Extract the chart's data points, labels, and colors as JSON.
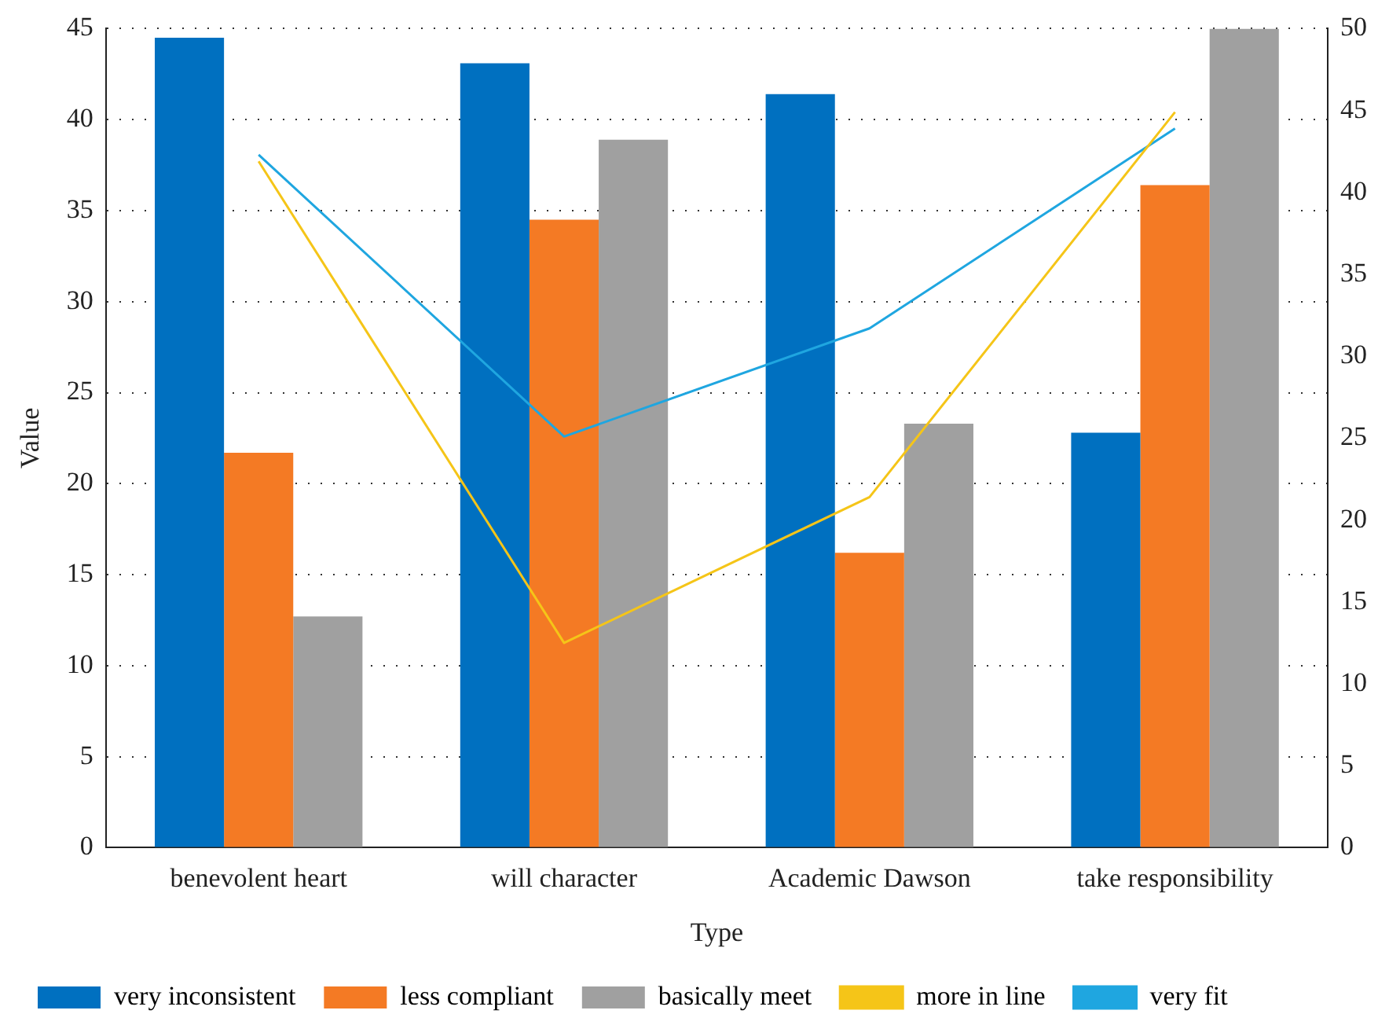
{
  "chart_data": {
    "type": "bar",
    "xlabel": "Type",
    "ylabel": "Value",
    "categories": [
      "benevolent heart",
      "will character",
      "Academic Dawson",
      "take responsibility"
    ],
    "series": [
      {
        "name": "very inconsistent",
        "color": "#0070c0",
        "values": [
          44.5,
          43.1,
          41.4,
          22.8
        ]
      },
      {
        "name": "less compliant",
        "color": "#f47a24",
        "values": [
          21.7,
          34.5,
          16.2,
          36.4
        ]
      },
      {
        "name": "basically meet",
        "color": "#a0a0a0",
        "values": [
          12.7,
          38.9,
          23.3,
          45.0
        ]
      },
      {
        "name": "more in line",
        "color": "#f5c518",
        "type": "line",
        "axis": "y2",
        "values": [
          41.9,
          12.5,
          21.4,
          44.9
        ]
      },
      {
        "name": "very fit",
        "color": "#1fa6e0",
        "type": "line",
        "axis": "y2",
        "values": [
          42.3,
          25.1,
          31.7,
          43.9
        ]
      }
    ],
    "ylim": [
      0,
      45
    ],
    "yticks": [
      0,
      5,
      10,
      15,
      20,
      25,
      30,
      35,
      40,
      45
    ],
    "y2lim": [
      0,
      50
    ],
    "y2ticks": [
      0,
      5,
      10,
      15,
      20,
      25,
      30,
      35,
      40,
      45,
      50
    ],
    "grid": "y",
    "legend": "bottom",
    "marker": "none",
    "line_style": "solid"
  }
}
